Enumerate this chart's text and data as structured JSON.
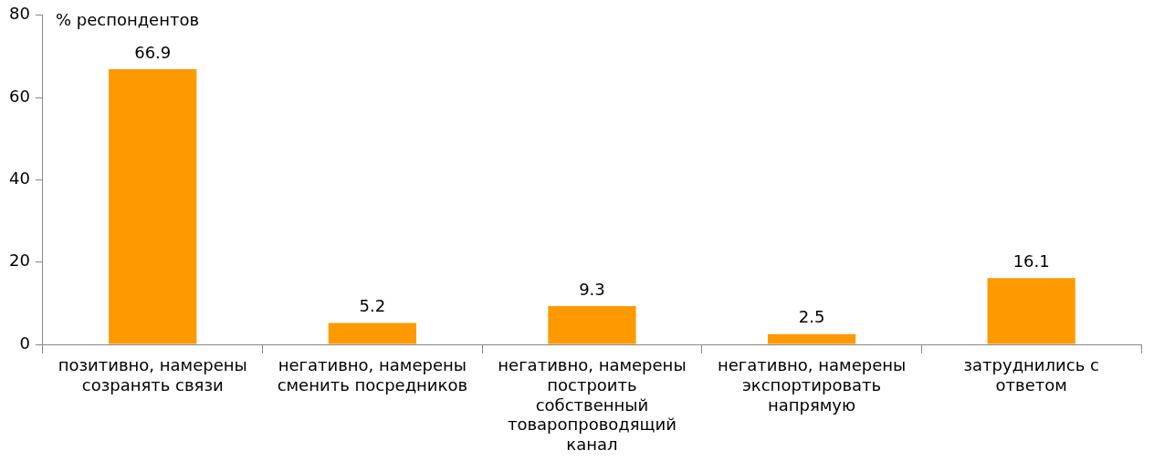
{
  "chart_data": {
    "type": "bar",
    "ylabel": "% респондентов",
    "categories": [
      "позитивно, намерены созранять связи",
      "негативно, намерены сменить посредников",
      "негативно, намерены построить собственный товаропроводящий канал",
      "негативно, намерены экспортировать напрямую",
      "затруднились с ответом"
    ],
    "values": [
      66.9,
      5.2,
      9.3,
      2.5,
      16.1
    ],
    "color": "#ff9900",
    "ylim": [
      0,
      80
    ],
    "yticks": [
      0,
      20,
      40,
      60,
      80
    ],
    "grid": false,
    "data_labels": true,
    "legend": false
  }
}
